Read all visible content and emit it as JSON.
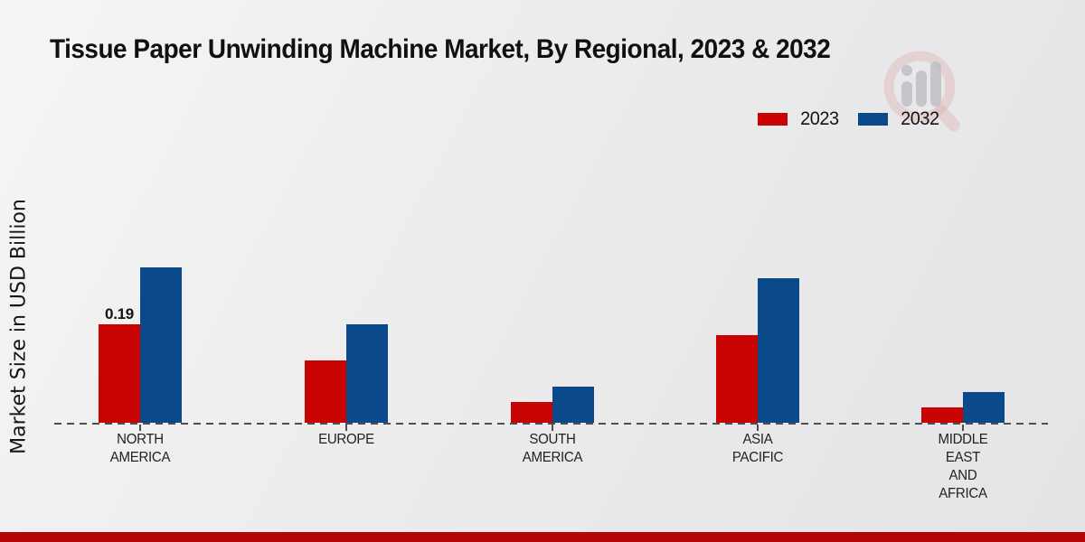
{
  "title": "Tissue Paper Unwinding Machine Market, By Regional, 2023 & 2032",
  "ylabel": "Market Size in USD Billion",
  "legend": [
    {
      "label": "2023",
      "color": "#c90202"
    },
    {
      "label": "2032",
      "color": "#0a4a8a"
    }
  ],
  "footer_color": "#b30505",
  "watermark_icon": "magnifier-bar-chart-logo",
  "chart_data": {
    "type": "bar",
    "categories": [
      "NORTH AMERICA",
      "EUROPE",
      "SOUTH AMERICA",
      "ASIA PACIFIC",
      "MIDDLE EAST AND AFRICA"
    ],
    "series": [
      {
        "name": "2023",
        "color": "#c90202",
        "values": [
          0.19,
          0.12,
          0.04,
          0.17,
          0.03
        ]
      },
      {
        "name": "2032",
        "color": "#0a4a8a",
        "values": [
          0.3,
          0.19,
          0.07,
          0.28,
          0.06
        ]
      }
    ],
    "title": "Tissue Paper Unwinding Machine Market, By Regional, 2023 & 2032",
    "xlabel": "",
    "ylabel": "Market Size in USD Billion",
    "ylim": [
      0,
      0.33
    ],
    "grid": false,
    "baseline_style": "dashed",
    "legend_position": "top-right",
    "bar_labels": [
      {
        "series_index": 0,
        "category_index": 0,
        "text": "0.19"
      }
    ]
  }
}
